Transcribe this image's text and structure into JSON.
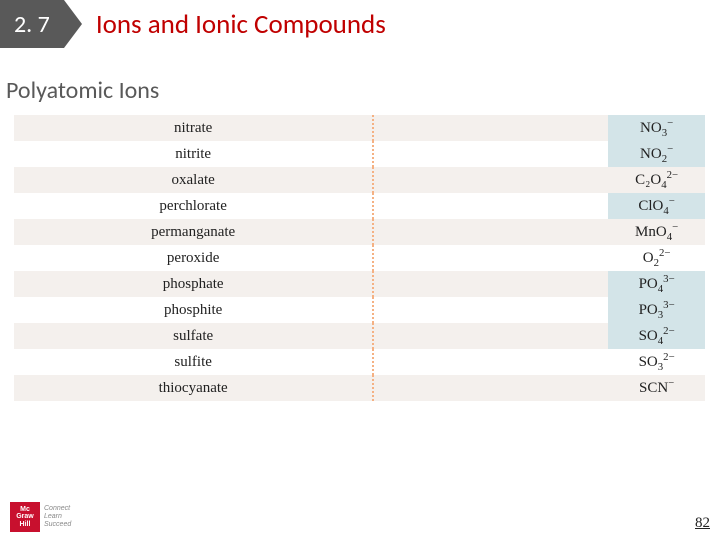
{
  "header": {
    "section_number": "2. 7",
    "chapter_title": "Ions and Ionic Compounds"
  },
  "subtitle": "Polyatomic Ions",
  "row_colors": {
    "striped": "#f4f0ed",
    "plain": "#ffffff"
  },
  "highlight_color": "#d3e4e8",
  "dotted_border_color": "#f5b183",
  "ions": [
    {
      "name": "nitrate",
      "base": "NO",
      "sub": "3",
      "charge": "−",
      "highlight": true
    },
    {
      "name": "nitrite",
      "base": "NO",
      "sub": "2",
      "charge": "−",
      "highlight": true
    },
    {
      "name": "oxalate",
      "base": "C₂O",
      "sub": "4",
      "charge": "2−",
      "highlight": false
    },
    {
      "name": "perchlorate",
      "base": "ClO",
      "sub": "4",
      "charge": "−",
      "highlight": true
    },
    {
      "name": "permanganate",
      "base": "MnO",
      "sub": "4",
      "charge": "−",
      "highlight": false
    },
    {
      "name": "peroxide",
      "base": "O",
      "sub": "2",
      "charge": "2−",
      "highlight": false
    },
    {
      "name": "phosphate",
      "base": "PO",
      "sub": "4",
      "charge": "3−",
      "highlight": true
    },
    {
      "name": "phosphite",
      "base": "PO",
      "sub": "3",
      "charge": "3−",
      "highlight": true
    },
    {
      "name": "sulfate",
      "base": "SO",
      "sub": "4",
      "charge": "2−",
      "highlight": true
    },
    {
      "name": "sulfite",
      "base": "SO",
      "sub": "3",
      "charge": "2−",
      "highlight": false
    },
    {
      "name": "thiocyanate",
      "base": "SCN",
      "sub": "",
      "charge": "−",
      "highlight": false
    }
  ],
  "footer": {
    "publisher_lines": [
      "Mc",
      "Graw",
      "Hill"
    ],
    "tagline_lines": [
      "Connect",
      "Learn",
      "Succeed"
    ],
    "page_number": "82"
  }
}
